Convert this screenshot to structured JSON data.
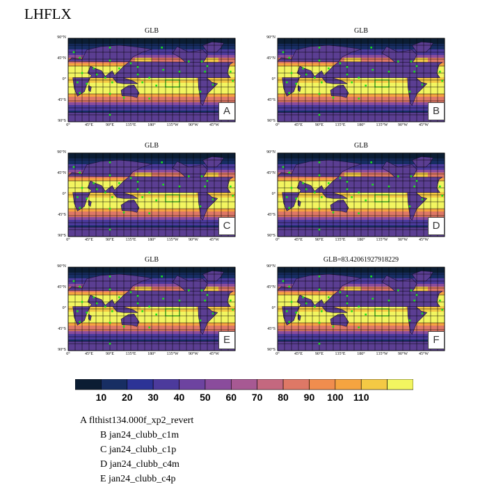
{
  "title": "LHFLX",
  "colors": {
    "land": "#5b3e92",
    "grid": "#000000",
    "stations": "#19e619",
    "scale": [
      "#0b1d33",
      "#172e63",
      "#2c3396",
      "#4c3a9c",
      "#6d43a0",
      "#8a4c9c",
      "#a75993",
      "#c4687f",
      "#de7866",
      "#f08d4e",
      "#f5a440",
      "#f4c944",
      "#f2f560"
    ]
  },
  "chart_data": {
    "type": "heatmap",
    "variable": "LHFLX",
    "projection": "cylindrical equidistant, global",
    "lat_ticks": [
      "90°N",
      "45°N",
      "0°",
      "45°S",
      "90°S"
    ],
    "lon_ticks": [
      "0°",
      "45°E",
      "90°E",
      "135°E",
      "180°",
      "135°W",
      "90°W",
      "45°W"
    ],
    "colorbar": {
      "levels": [
        10,
        20,
        30,
        40,
        50,
        60,
        70,
        80,
        90,
        100,
        110
      ],
      "labels": [
        "10",
        "20",
        "30",
        "40",
        "50",
        "60",
        "70",
        "80",
        "90",
        "100",
        "110"
      ]
    },
    "panels": [
      {
        "title": "GLB",
        "letter": "A",
        "case": "flthist134.000f_xp2_revert"
      },
      {
        "title": "GLB",
        "letter": "B",
        "case": "jan24_clubb_c1m"
      },
      {
        "title": "GLB",
        "letter": "C",
        "case": "jan24_clubb_c1p"
      },
      {
        "title": "GLB",
        "letter": "D",
        "case": "jan24_clubb_c4m"
      },
      {
        "title": "GLB",
        "letter": "E",
        "case": "jan24_clubb_c4p"
      },
      {
        "title": "GLB=83.42061927918229",
        "letter": "F",
        "case": ""
      }
    ]
  },
  "legend": [
    {
      "letter": "A",
      "case": "flthist134.000f_xp2_revert"
    },
    {
      "letter": "B",
      "case": "jan24_clubb_c1m"
    },
    {
      "letter": "C",
      "case": "jan24_clubb_c1p"
    },
    {
      "letter": "D",
      "case": "jan24_clubb_c4m"
    },
    {
      "letter": "E",
      "case": "jan24_clubb_c4p"
    }
  ]
}
